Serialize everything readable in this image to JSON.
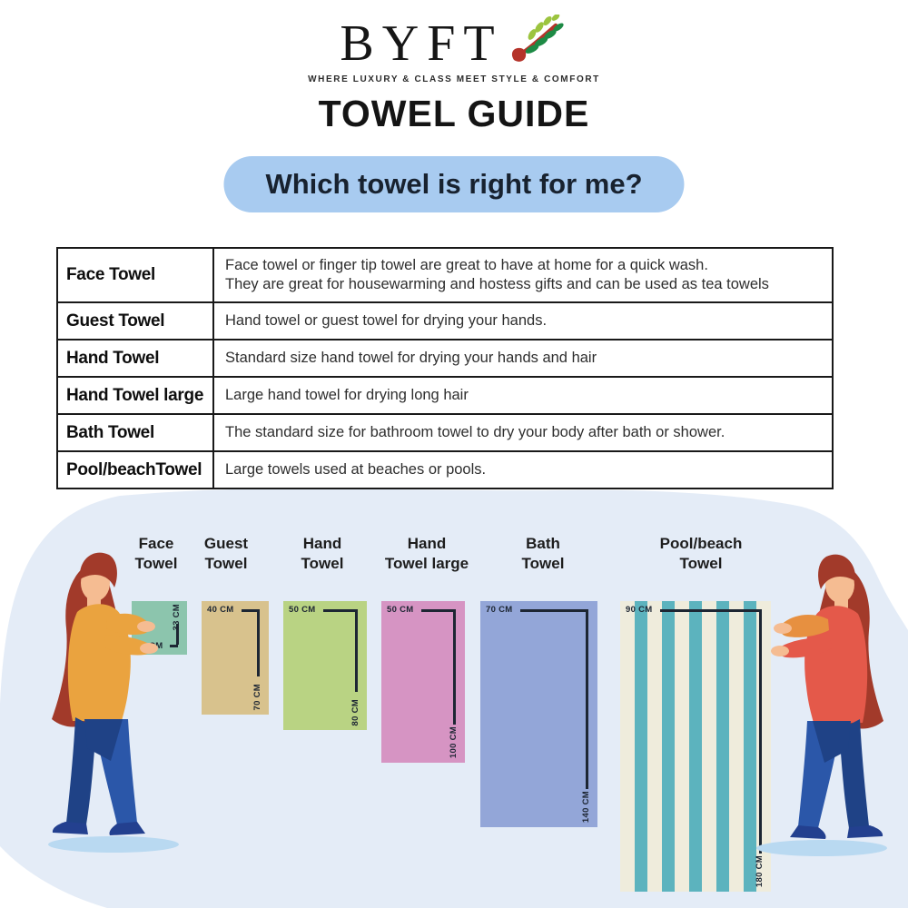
{
  "brand": {
    "name": "BYFT",
    "tagline": "WHERE LUXURY & CLASS MEET STYLE & COMFORT",
    "leaf_icon": "leaf-sprig-icon"
  },
  "title": "TOWEL GUIDE",
  "question_banner": {
    "text": "Which towel is right for me?"
  },
  "table": {
    "rows": [
      {
        "name": "Face Towel",
        "description": "Face towel or finger tip towel are great to have at home for a quick wash.\nThey are great for housewarming and hostess gifts and can be used as tea towels"
      },
      {
        "name": "Guest Towel",
        "description": "Hand towel or guest towel for drying your hands."
      },
      {
        "name": "Hand Towel",
        "description": "Standard size hand towel for drying your hands and hair"
      },
      {
        "name": "Hand Towel large",
        "description": "Large hand towel for drying long hair"
      },
      {
        "name": "Bath Towel",
        "description": "The standard size for bathroom towel to dry your body after bath or shower."
      },
      {
        "name": "Pool/beachTowel",
        "description": "Large towels used at beaches or pools."
      }
    ]
  },
  "size_chart": {
    "towels": [
      {
        "label": "Face\nTowel",
        "width_cm": 33,
        "height_cm": 33,
        "width_label": "33 CM",
        "height_label": "33 CM",
        "color": "#8cc5ad",
        "measure_style": "bottom"
      },
      {
        "label": "Guest\nTowel",
        "width_cm": 40,
        "height_cm": 70,
        "width_label": "40 CM",
        "height_label": "70 CM",
        "color": "#d8c28d",
        "measure_style": "top"
      },
      {
        "label": "Hand\nTowel",
        "width_cm": 50,
        "height_cm": 80,
        "width_label": "50 CM",
        "height_label": "80 CM",
        "color": "#b9d383",
        "measure_style": "top"
      },
      {
        "label": "Hand\nTowel large",
        "width_cm": 50,
        "height_cm": 100,
        "width_label": "50 CM",
        "height_label": "100 CM",
        "color": "#d694c3",
        "measure_style": "top"
      },
      {
        "label": "Bath\nTowel",
        "width_cm": 70,
        "height_cm": 140,
        "width_label": "70 CM",
        "height_label": "140 CM",
        "color": "#93a6d8",
        "measure_style": "top"
      },
      {
        "label": "Pool/beach\nTowel",
        "width_cm": 90,
        "height_cm": 180,
        "width_label": "90 CM",
        "height_label": "180 CM",
        "color": "striped",
        "stripe_colors": [
          "#efecdc",
          "#5cb3be"
        ],
        "measure_style": "top"
      }
    ]
  },
  "colors": {
    "background_blob": "#e4ecf7",
    "banner_bg": "#a8cbf0",
    "measure": "#1d2633",
    "table_border": "#191919",
    "illustration": {
      "hair": "#a23a2a",
      "skin": "#f5bc92",
      "top_left_woman": "#eaa33f",
      "top_right_woman": "#e4594a",
      "sleeve_accent": "#e79040",
      "jeans": "#2b57a9",
      "jeans_dark": "#1f4286",
      "shoes": "#23408f",
      "ground_shadow": "#b9d9f1"
    }
  }
}
